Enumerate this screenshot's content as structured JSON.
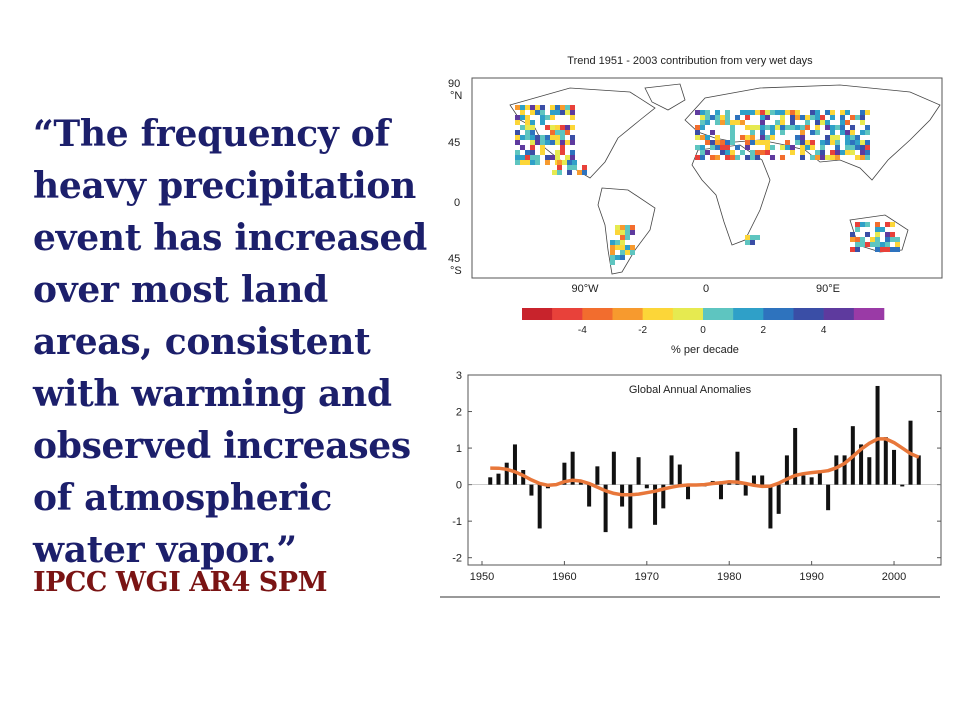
{
  "slide": {
    "quote": "“The frequency of\nheavy precipitation\nevent has increased\nover most land\nareas, consistent\nwith warming and\nobserved increases\nof atmospheric\nwater vapor.”",
    "source": "IPCC WGI AR4 SPM"
  },
  "map": {
    "title": "Trend 1951 - 2003 contribution from very wet days",
    "lat_labels": [
      "90\n°N",
      "45",
      "0",
      "45\n°S"
    ],
    "lon_labels": [
      "90°W",
      "0",
      "90°E"
    ],
    "colorbar_ticks": [
      "-4",
      "-2",
      "0",
      "2",
      "4"
    ],
    "colorbar_colors": [
      "#c8232c",
      "#e8413a",
      "#f26d2e",
      "#f79a2e",
      "#fcd638",
      "#e6ea50",
      "#5ec5c0",
      "#2fa0c8",
      "#2e73be",
      "#3a4ea6",
      "#5e3a9e",
      "#9a3aa6"
    ],
    "colorbar_label": "% per decade"
  },
  "chart_data": {
    "type": "bar",
    "title": "Global Annual Anomalies",
    "xlabel": "",
    "ylabel": "",
    "xlim": [
      1950,
      2004
    ],
    "ylim": [
      -2.2,
      3
    ],
    "x_ticks": [
      1950,
      1960,
      1970,
      1980,
      1990,
      2000
    ],
    "y_ticks": [
      3,
      2,
      1,
      0,
      -1,
      -2
    ],
    "x": [
      1951,
      1952,
      1953,
      1954,
      1955,
      1956,
      1957,
      1958,
      1959,
      1960,
      1961,
      1962,
      1963,
      1964,
      1965,
      1966,
      1967,
      1968,
      1969,
      1970,
      1971,
      1972,
      1973,
      1974,
      1975,
      1976,
      1977,
      1978,
      1979,
      1980,
      1981,
      1982,
      1983,
      1984,
      1985,
      1986,
      1987,
      1988,
      1989,
      1990,
      1991,
      1992,
      1993,
      1994,
      1995,
      1996,
      1997,
      1998,
      1999,
      2000,
      2001,
      2002,
      2003
    ],
    "series": [
      {
        "type": "bar",
        "color": "#111111",
        "values": [
          0.2,
          0.3,
          0.6,
          1.1,
          0.4,
          -0.3,
          -1.2,
          -0.1,
          0.0,
          0.6,
          0.9,
          0.1,
          -0.6,
          0.5,
          -1.3,
          0.9,
          -0.6,
          -1.2,
          0.75,
          -0.1,
          -1.1,
          -0.65,
          0.8,
          0.55,
          -0.4,
          0.0,
          -0.05,
          0.1,
          -0.4,
          0.05,
          0.9,
          -0.3,
          0.25,
          0.25,
          -1.2,
          -0.8,
          0.8,
          1.55,
          0.25,
          0.2,
          0.35,
          -0.7,
          0.8,
          0.8,
          1.6,
          1.1,
          0.75,
          2.7,
          1.3,
          0.95,
          -0.05,
          1.75,
          0.8
        ]
      },
      {
        "type": "line",
        "color": "#e8773a",
        "values": [
          0.45,
          0.45,
          0.42,
          0.35,
          0.25,
          0.13,
          0.03,
          -0.02,
          0.0,
          0.08,
          0.12,
          0.1,
          0.03,
          -0.07,
          -0.17,
          -0.24,
          -0.28,
          -0.28,
          -0.26,
          -0.22,
          -0.18,
          -0.12,
          -0.07,
          -0.03,
          -0.01,
          -0.01,
          0.0,
          0.03,
          0.05,
          0.08,
          0.07,
          0.03,
          -0.02,
          -0.05,
          -0.04,
          0.04,
          0.15,
          0.25,
          0.3,
          0.33,
          0.35,
          0.38,
          0.46,
          0.58,
          0.77,
          0.97,
          1.13,
          1.25,
          1.25,
          1.15,
          1.0,
          0.85,
          0.75
        ]
      }
    ]
  }
}
